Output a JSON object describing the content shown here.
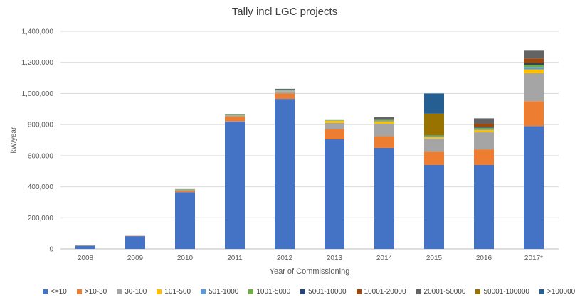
{
  "chart_data": {
    "type": "bar",
    "stacked": true,
    "title": "Tally incl LGC projects",
    "xlabel": "Year of Commissioning",
    "ylabel": "kW/year",
    "ylim": [
      0,
      1400000
    ],
    "yticks": [
      "0",
      "200,000",
      "400,000",
      "600,000",
      "800,000",
      "1,000,000",
      "1,200,000",
      "1,400,000"
    ],
    "ytick_values": [
      0,
      200000,
      400000,
      600000,
      800000,
      1000000,
      1200000,
      1400000
    ],
    "grid": true,
    "legend_position": "bottom",
    "categories": [
      "2008",
      "2009",
      "2010",
      "2011",
      "2012",
      "2013",
      "2014",
      "2015",
      "2016",
      "2017*"
    ],
    "series": [
      {
        "name": "<=10",
        "color": "#4472C4",
        "values": [
          20000,
          82000,
          365000,
          820000,
          965000,
          705000,
          650000,
          540000,
          540000,
          790000
        ]
      },
      {
        "name": ">10-30",
        "color": "#ED7D31",
        "values": [
          2000,
          2000,
          10000,
          30000,
          35000,
          65000,
          75000,
          85000,
          100000,
          160000
        ]
      },
      {
        "name": "30-100",
        "color": "#A5A5A5",
        "values": [
          1000,
          0,
          5000,
          8000,
          15000,
          40000,
          80000,
          85000,
          110000,
          180000
        ]
      },
      {
        "name": "101-500",
        "color": "#FFC000",
        "values": [
          0,
          0,
          2000,
          2000,
          2000,
          15000,
          15000,
          10000,
          15000,
          25000
        ]
      },
      {
        "name": "501-1000",
        "color": "#5B9BD5",
        "values": [
          0,
          0,
          1000,
          2000,
          2000,
          2000,
          5000,
          5000,
          5000,
          15000
        ]
      },
      {
        "name": "1001-5000",
        "color": "#70AD47",
        "values": [
          0,
          0,
          2000,
          3000,
          3000,
          2000,
          5000,
          5000,
          10000,
          15000
        ]
      },
      {
        "name": "5001-10000",
        "color": "#264478",
        "values": [
          0,
          0,
          0,
          0,
          3000,
          0,
          0,
          0,
          5000,
          10000
        ]
      },
      {
        "name": "10001-20000",
        "color": "#9E480E",
        "values": [
          0,
          0,
          0,
          0,
          0,
          0,
          0,
          0,
          20000,
          30000
        ]
      },
      {
        "name": "20001-50000",
        "color": "#636363",
        "values": [
          0,
          0,
          0,
          0,
          5000,
          0,
          18000,
          0,
          35000,
          50000
        ]
      },
      {
        "name": "50001-100000",
        "color": "#997300",
        "values": [
          0,
          0,
          0,
          0,
          0,
          0,
          0,
          140000,
          0,
          0
        ]
      },
      {
        "name": ">100000",
        "color": "#255E91",
        "values": [
          0,
          0,
          0,
          0,
          0,
          0,
          0,
          130000,
          0,
          0
        ]
      }
    ]
  }
}
